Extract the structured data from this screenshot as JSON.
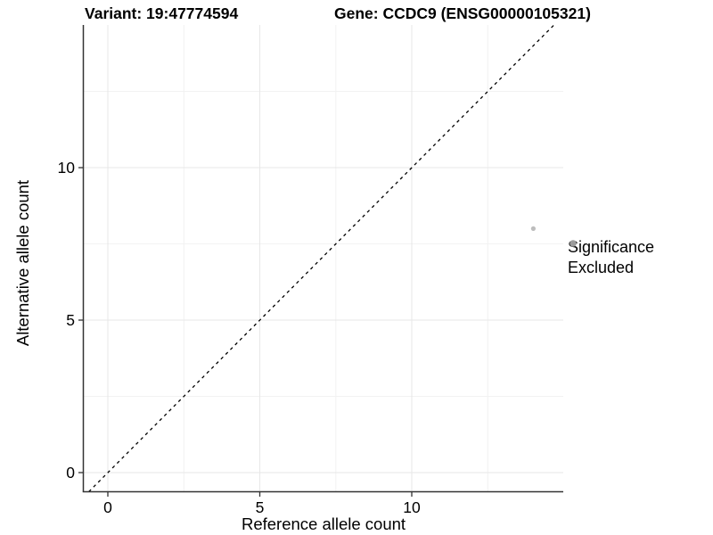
{
  "figure": {
    "title_left": "Variant: 19:47774594",
    "title_right": "Gene: CCDC9 (ENSG00000105321)"
  },
  "chart_data": {
    "type": "scatter",
    "title": "Variant: 19:47774594        Gene: CCDC9 (ENSG00000105321)",
    "xlabel": "Reference allele count",
    "ylabel": "Alternative allele count",
    "x_ticks": [
      "0",
      "5",
      "10"
    ],
    "x_tick_values": [
      0,
      5,
      10
    ],
    "y_ticks": [
      "0",
      "5",
      "10"
    ],
    "y_tick_values": [
      0,
      5,
      10
    ],
    "xlim": [
      -0.8,
      15.0
    ],
    "ylim": [
      -0.65,
      14.8
    ],
    "grid": "major and minor gridlines, very light gray, minor at 2.5-unit midpoints",
    "reference_line": {
      "type": "identity",
      "equation": "y = x",
      "slope": 1,
      "intercept": 0,
      "style": "dashed",
      "color": "#000000"
    },
    "series": [
      {
        "name": "Excluded",
        "color": "#bdbdbd",
        "points": [
          {
            "x": 14,
            "y": 8
          }
        ]
      }
    ],
    "legend": {
      "title": "Significance",
      "position": "right",
      "entries": [
        {
          "label": "Excluded",
          "color": "#9c9c9c",
          "marker": "circle"
        }
      ]
    }
  },
  "colors": {
    "background": "#ffffff",
    "axis_line": "#333333",
    "grid_major": "#e7e7e7",
    "grid_minor": "#f2f2f2",
    "point": "#bdbdbd",
    "legend_dot": "#9c9c9c"
  }
}
